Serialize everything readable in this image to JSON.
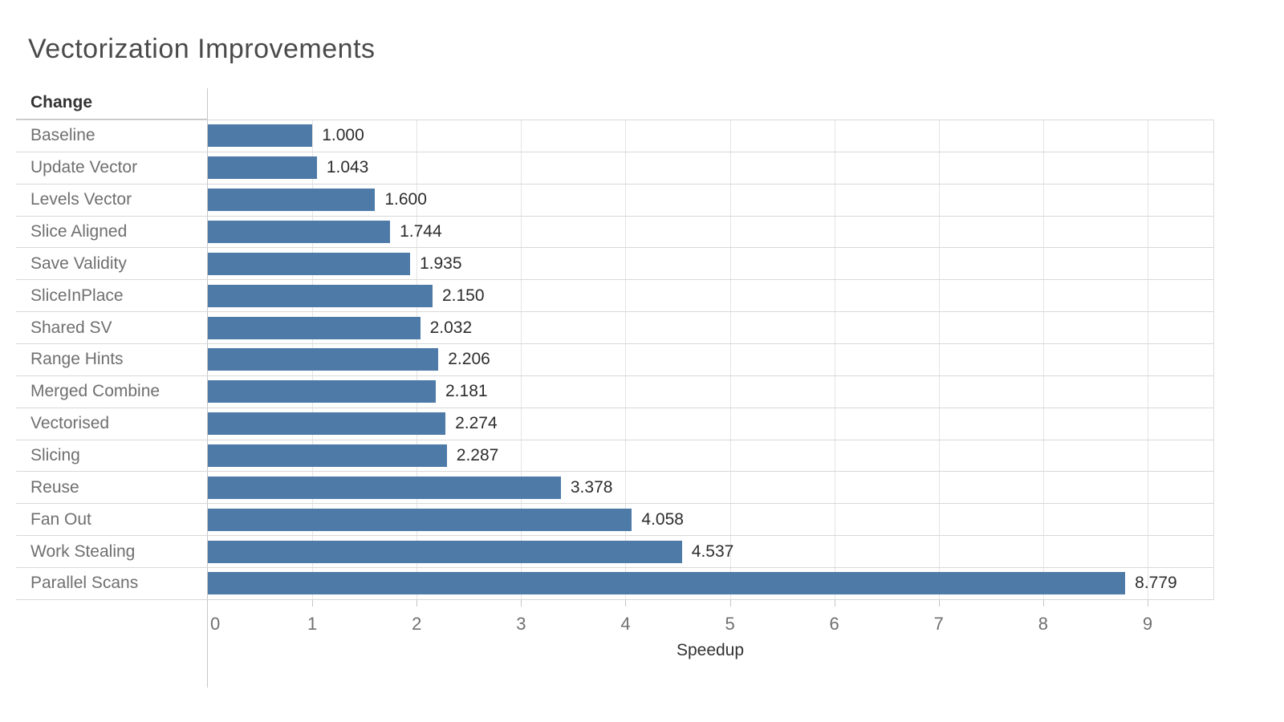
{
  "title": "Vectorization Improvements",
  "column_header": "Change",
  "colors": {
    "bar": "#4e7aa8",
    "gridline": "#e4e4e4",
    "row_separator": "#d8d8d8",
    "axis_line": "#c6c6c6",
    "title_text": "#4a4a4a",
    "row_label_text": "#6f6f6f",
    "value_label_text": "#2d2d2d",
    "tick_label_text": "#707070"
  },
  "chart_data": {
    "type": "bar",
    "orientation": "horizontal",
    "title": "Vectorization Improvements",
    "xlabel": "Speedup",
    "ylabel": "Change",
    "xlim": [
      0,
      9.63
    ],
    "x_ticks": [
      0,
      1,
      2,
      3,
      4,
      5,
      6,
      7,
      8,
      9
    ],
    "grid": "vertical",
    "categories": [
      "Baseline",
      "Update Vector",
      "Levels Vector",
      "Slice Aligned",
      "Save Validity",
      "SliceInPlace",
      "Shared SV",
      "Range Hints",
      "Merged Combine",
      "Vectorised",
      "Slicing",
      "Reuse",
      "Fan Out",
      "Work Stealing",
      "Parallel Scans"
    ],
    "values": [
      1.0,
      1.043,
      1.6,
      1.744,
      1.935,
      2.15,
      2.032,
      2.206,
      2.181,
      2.274,
      2.287,
      3.378,
      4.058,
      4.537,
      8.779
    ],
    "value_labels": [
      "1.000",
      "1.043",
      "1.600",
      "1.744",
      "1.935",
      "2.150",
      "2.032",
      "2.206",
      "2.181",
      "2.274",
      "2.287",
      "3.378",
      "4.058",
      "4.537",
      "8.779"
    ]
  }
}
